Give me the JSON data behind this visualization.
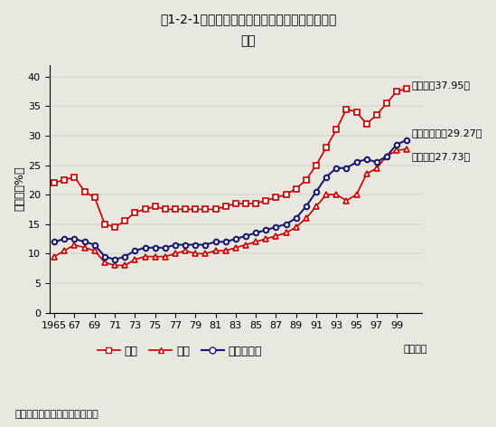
{
  "title_line1": "第1-2-1図　理工系大学院修士課程への進学率の",
  "title_line2": "推移",
  "ylabel": "進学率（%）",
  "xlabel": "（年度）",
  "source": "資料：文部省「学校基本調査」",
  "ylim": [
    0,
    42
  ],
  "yticks": [
    0,
    5,
    10,
    15,
    20,
    25,
    30,
    35,
    40
  ],
  "years": [
    1965,
    1966,
    1967,
    1968,
    1969,
    1970,
    1971,
    1972,
    1973,
    1974,
    1975,
    1976,
    1977,
    1978,
    1979,
    1980,
    1981,
    1982,
    1983,
    1984,
    1985,
    1986,
    1987,
    1988,
    1989,
    1990,
    1991,
    1992,
    1993,
    1994,
    1995,
    1996,
    1997,
    1998,
    1999,
    2000
  ],
  "xtick_labels": [
    "1965",
    "67",
    "69",
    "71",
    "73",
    "75",
    "77",
    "79",
    "81",
    "83",
    "85",
    "87",
    "89",
    "91",
    "93",
    "95",
    "97",
    "99"
  ],
  "xtick_years": [
    1965,
    1967,
    1969,
    1971,
    1973,
    1975,
    1977,
    1979,
    1981,
    1983,
    1985,
    1987,
    1989,
    1991,
    1993,
    1995,
    1997,
    1999
  ],
  "rigaku": [
    22.0,
    22.5,
    23.0,
    20.5,
    19.5,
    15.0,
    14.5,
    15.5,
    17.0,
    17.5,
    18.0,
    17.5,
    17.5,
    17.5,
    17.5,
    17.5,
    17.5,
    18.0,
    18.5,
    18.5,
    18.5,
    19.0,
    19.5,
    20.0,
    21.0,
    22.5,
    25.0,
    28.0,
    31.0,
    34.5,
    34.0,
    32.0,
    33.5,
    35.5,
    37.5,
    37.95
  ],
  "kogaku": [
    9.5,
    10.5,
    11.5,
    11.0,
    10.5,
    8.5,
    8.0,
    8.0,
    9.0,
    9.5,
    9.5,
    9.5,
    10.0,
    10.5,
    10.0,
    10.0,
    10.5,
    10.5,
    11.0,
    11.5,
    12.0,
    12.5,
    13.0,
    13.5,
    14.5,
    16.0,
    18.0,
    20.0,
    20.0,
    19.0,
    20.0,
    23.5,
    24.5,
    26.5,
    27.5,
    27.73
  ],
  "heikin": [
    12.0,
    12.5,
    12.5,
    12.0,
    11.5,
    9.5,
    9.0,
    9.5,
    10.5,
    11.0,
    11.0,
    11.0,
    11.5,
    11.5,
    11.5,
    11.5,
    12.0,
    12.0,
    12.5,
    13.0,
    13.5,
    14.0,
    14.5,
    15.0,
    16.0,
    18.0,
    20.5,
    23.0,
    24.5,
    24.5,
    25.5,
    26.0,
    25.5,
    26.5,
    28.5,
    29.27
  ],
  "rigaku_label": "理学系（37.95）",
  "kogaku_label": "工学系（27.73）",
  "heikin_label": "理工系平均（29.27）",
  "rigaku_color": "#cc0000",
  "kogaku_color": "#cc0000",
  "heikin_color": "#1a1a6e",
  "legend_rigaku": "理学",
  "legend_kogaku": "工学",
  "legend_heikin": "理工系平均",
  "bg_color": "#e8e8e0"
}
